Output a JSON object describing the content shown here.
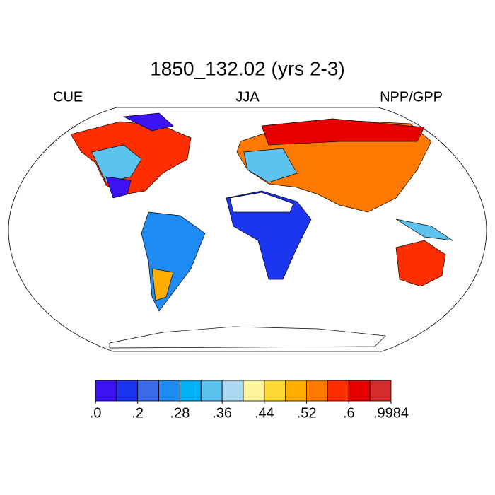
{
  "header": {
    "title": "1850_132.02 (yrs 2-3)",
    "left_label": "CUE",
    "center_label": "JJA",
    "right_label": "NPP/GPP"
  },
  "colorbar": {
    "colors": [
      "#3d12f5",
      "#1c35f0",
      "#3a6ae6",
      "#1e8bf2",
      "#00b2f5",
      "#5cc2f0",
      "#acd8f2",
      "#fff5a0",
      "#ffd933",
      "#ffad00",
      "#ff7a00",
      "#ff2e00",
      "#e60000",
      "#d42c2c"
    ],
    "ticks": [
      {
        "value": 0,
        "label": ".0"
      },
      {
        "value": 0.2,
        "label": ".2"
      },
      {
        "value": 0.28,
        "label": ".28"
      },
      {
        "value": 0.36,
        "label": ".36"
      },
      {
        "value": 0.44,
        "label": ".44"
      },
      {
        "value": 0.52,
        "label": ".52"
      },
      {
        "value": 0.6,
        "label": ".6"
      },
      {
        "value": 0.9984,
        "label": ".9984"
      }
    ]
  }
}
